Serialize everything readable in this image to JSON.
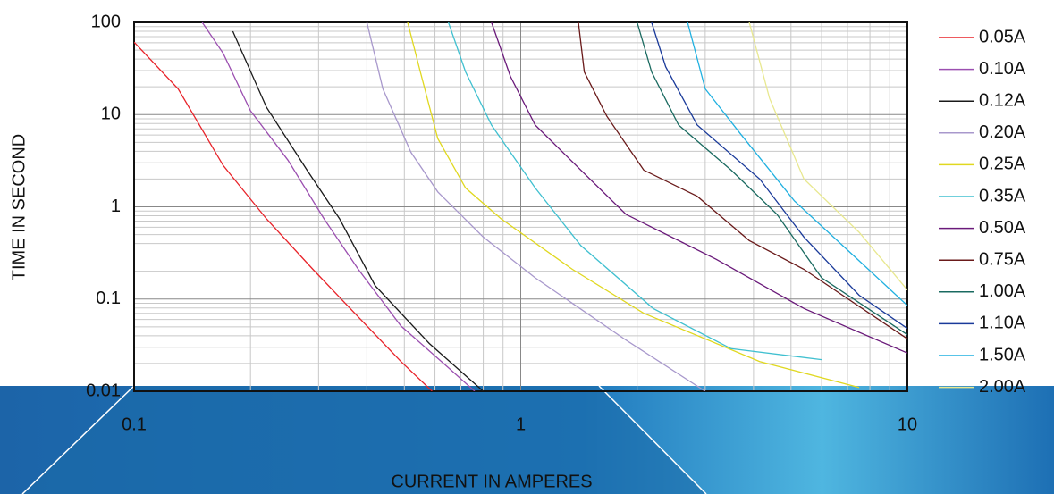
{
  "chart_data": {
    "type": "line",
    "xlabel": "CURRENT IN AMPERES",
    "ylabel": "TIME IN SECOND",
    "xscale": "log",
    "yscale": "log",
    "xlim": [
      0.1,
      10
    ],
    "ylim": [
      0.01,
      100
    ],
    "xticks": [
      0.1,
      1,
      10
    ],
    "yticks": [
      0.01,
      0.1,
      1,
      10,
      100
    ],
    "grid": true,
    "minor_grid": true,
    "legend": "right",
    "series": [
      {
        "name": "0.05A",
        "color": "#e8232a",
        "x": [
          0.1,
          0.13,
          0.17,
          0.22,
          0.29,
          0.38,
          0.49,
          0.59
        ],
        "values": [
          61,
          19,
          2.8,
          0.74,
          0.21,
          0.064,
          0.021,
          0.01
        ]
      },
      {
        "name": "0.10A",
        "color": "#9b4fb0",
        "x": [
          0.15,
          0.17,
          0.2,
          0.25,
          0.31,
          0.38,
          0.49,
          0.65,
          0.76
        ],
        "values": [
          100,
          46,
          11,
          3.2,
          0.74,
          0.21,
          0.051,
          0.018,
          0.01
        ]
      },
      {
        "name": "0.12A",
        "color": "#1a1a1a",
        "x": [
          0.18,
          0.22,
          0.28,
          0.34,
          0.42,
          0.58,
          0.8
        ],
        "values": [
          80,
          12,
          2.5,
          0.74,
          0.14,
          0.033,
          0.01
        ]
      },
      {
        "name": "0.20A",
        "color": "#a898cc",
        "x": [
          0.4,
          0.44,
          0.52,
          0.61,
          0.8,
          1.09,
          1.87,
          3
        ],
        "values": [
          100,
          19,
          3.9,
          1.45,
          0.47,
          0.17,
          0.036,
          0.01
        ]
      },
      {
        "name": "0.25A",
        "color": "#e0d820",
        "x": [
          0.51,
          0.55,
          0.61,
          0.72,
          0.89,
          1.36,
          2.08,
          4.15,
          7.5
        ],
        "values": [
          100,
          29,
          5.5,
          1.6,
          0.74,
          0.21,
          0.07,
          0.021,
          0.011
        ]
      },
      {
        "name": "0.35A",
        "color": "#40c0d0",
        "x": [
          0.65,
          0.72,
          0.84,
          1.09,
          1.43,
          2.2,
          3.5,
          6
        ],
        "values": [
          100,
          29,
          7.7,
          1.6,
          0.38,
          0.079,
          0.029,
          0.022
        ]
      },
      {
        "name": "0.50A",
        "color": "#6a1a7a",
        "x": [
          0.84,
          0.94,
          1.09,
          1.43,
          1.87,
          3.2,
          5.4,
          10
        ],
        "values": [
          100,
          26,
          7.7,
          2.5,
          0.83,
          0.27,
          0.079,
          0.026
        ]
      },
      {
        "name": "0.75A",
        "color": "#6a1a1a",
        "x": [
          1.41,
          1.46,
          1.67,
          2.08,
          2.86,
          3.9,
          5.4,
          10
        ],
        "values": [
          100,
          29,
          9.6,
          2.5,
          1.3,
          0.43,
          0.21,
          0.037
        ]
      },
      {
        "name": "1.00A",
        "color": "#1a6a60",
        "x": [
          2,
          2.18,
          2.56,
          3.5,
          4.6,
          6,
          10
        ],
        "values": [
          100,
          29,
          7.7,
          2.5,
          0.83,
          0.17,
          0.041
        ]
      },
      {
        "name": "1.10A",
        "color": "#1a3a9a",
        "x": [
          2.18,
          2.37,
          2.86,
          4.15,
          5.4,
          7.5,
          10
        ],
        "values": [
          100,
          33,
          7.7,
          2,
          0.47,
          0.11,
          0.048
        ]
      },
      {
        "name": "1.50A",
        "color": "#20b0e0",
        "x": [
          2.7,
          3,
          3.7,
          5.1,
          7,
          10
        ],
        "values": [
          100,
          19,
          6.2,
          1.16,
          0.34,
          0.085
        ]
      },
      {
        "name": "2.00A",
        "color": "#e8e890",
        "x": [
          3.9,
          4.4,
          5.4,
          7.5,
          10
        ],
        "values": [
          100,
          15,
          2,
          0.53,
          0.125
        ]
      }
    ]
  }
}
